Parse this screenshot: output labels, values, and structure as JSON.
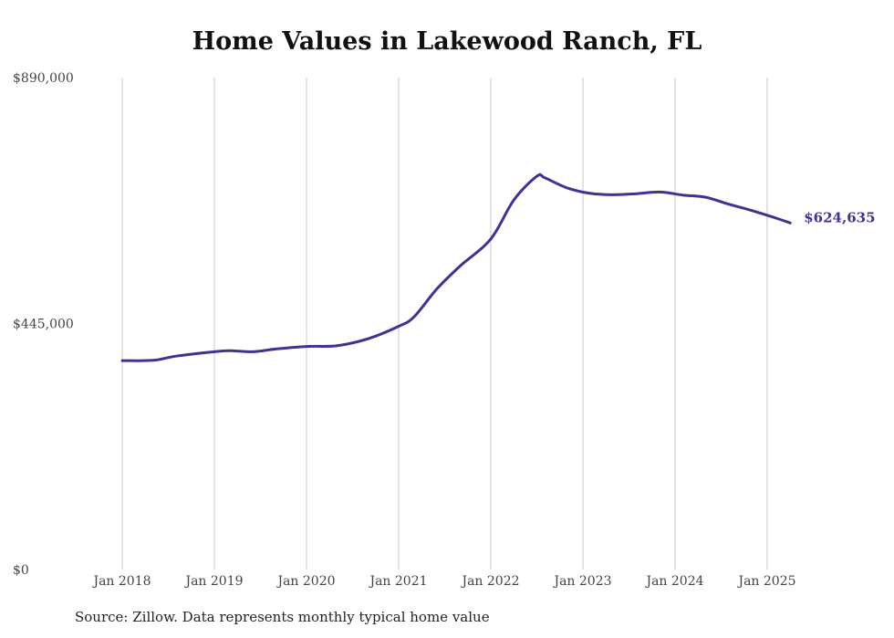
{
  "chart_data": {
    "type": "line",
    "title": "Home Values in Lakewood Ranch, FL",
    "xlabel": "",
    "ylabel": "",
    "ylim": [
      0,
      890000
    ],
    "y_ticks": [
      "$0",
      "$445,000",
      "$890,000"
    ],
    "x_ticks": [
      "Jan 2018",
      "Jan 2019",
      "Jan 2020",
      "Jan 2021",
      "Jan 2022",
      "Jan 2023",
      "Jan 2024",
      "Jan 2025"
    ],
    "grid": "vertical",
    "color": "#3d3490",
    "end_label": "$624,635",
    "series": [
      {
        "x": [
          "2018-01",
          "2018-05",
          "2018-08",
          "2019-01",
          "2019-03",
          "2019-06",
          "2019-09",
          "2020-01",
          "2020-05",
          "2020-09",
          "2021-01",
          "2021-03",
          "2021-06",
          "2021-09",
          "2022-01",
          "2022-04",
          "2022-07",
          "2022-08",
          "2022-11",
          "2023-02",
          "2023-05",
          "2023-08",
          "2023-11",
          "2024-02",
          "2024-05",
          "2024-08",
          "2024-11",
          "2025-02",
          "2025-04"
        ],
        "values": [
          378000,
          378500,
          386000,
          394000,
          396000,
          394000,
          399000,
          403500,
          405000,
          417500,
          440000,
          457000,
          508000,
          549000,
          598000,
          668500,
          711500,
          709000,
          690000,
          680500,
          678000,
          680000,
          683000,
          677500,
          673500,
          661000,
          649500,
          636500,
          627000
        ]
      }
    ]
  },
  "footer": {
    "source": "Source: Zillow. Data represents monthly typical home value"
  }
}
